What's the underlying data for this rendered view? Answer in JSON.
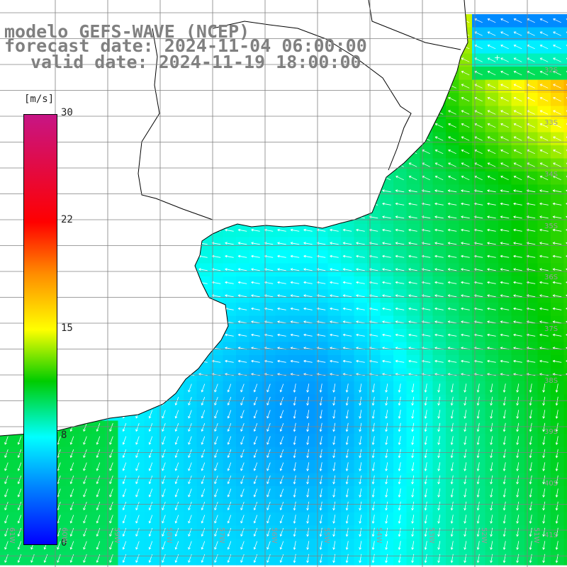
{
  "title": {
    "line1": "modelo GEFS-WAVE (NCEP)",
    "line2": "forecast date: 2024-11-04 06:00:00",
    "line3": "valid date: 2024-11-19 18:00:00"
  },
  "colorbar": {
    "unit": "[m/s]",
    "ticks": [
      "30",
      "22",
      "15",
      "8",
      "0"
    ],
    "min": 0,
    "max": 30,
    "colors": [
      "#0000ff",
      "#0080ff",
      "#00ffff",
      "#00cc00",
      "#ffff00",
      "#ff8c00",
      "#ff0000",
      "#c71585"
    ]
  },
  "lat_labels": [
    "32S",
    "33S",
    "34S",
    "35S",
    "36S",
    "37S",
    "38S",
    "39S",
    "40S",
    "41S"
  ],
  "lon_labels": [
    "61W",
    "60W",
    "59W",
    "58W",
    "57W",
    "56W",
    "55W",
    "54W",
    "53W",
    "52W",
    "51W"
  ],
  "map_features": {
    "land_color": "#ffffff",
    "coastline_color": "#000000",
    "grid_color": "#808080",
    "vector_color": "#ffffff"
  }
}
